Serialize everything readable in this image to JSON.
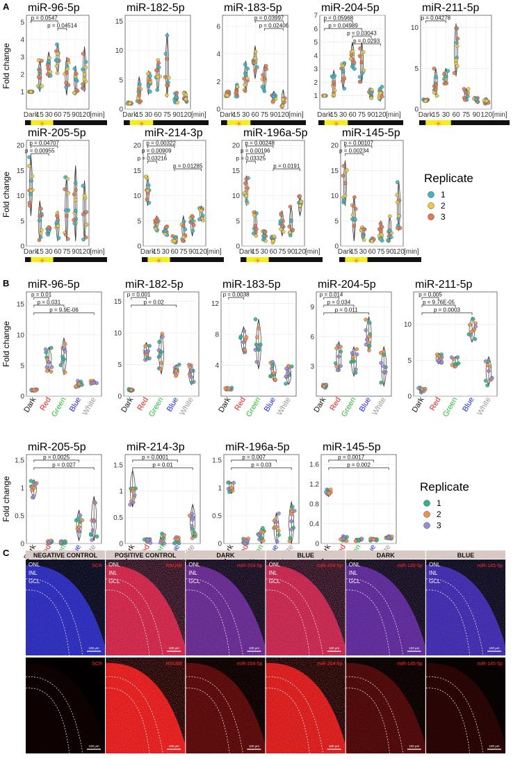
{
  "panels": {
    "A": "A",
    "B": "B",
    "C": "C"
  },
  "colors": {
    "rep1": "#3DB5C4",
    "rep2": "#E6C84A",
    "rep3": "#E07856",
    "b_rep1": "#2FB58C",
    "b_rep2": "#F0904A",
    "b_rep3": "#9A8AD6",
    "dark": "#111111",
    "light": "#F5EE1A",
    "red": "#E52420",
    "green": "#2BC03A",
    "blue": "#1E2BE0",
    "white": "#999999",
    "dapi": "#2233FF",
    "probe": "#FF1A1A"
  },
  "panel_a": {
    "ylabel": "Fold change",
    "xunit": "[min]",
    "categories": [
      "Dark",
      "15",
      "30",
      "60",
      "75",
      "90",
      "120"
    ],
    "legend": {
      "title": "Replicate",
      "labels": [
        "1",
        "2",
        "3"
      ]
    },
    "charts": [
      {
        "title": "miR-96-5p",
        "ylim": [
          0,
          5.4
        ],
        "yticks": [
          1,
          2,
          3,
          4,
          5
        ],
        "means": [
          1.0,
          2.2,
          2.75,
          3.2,
          2.1,
          1.7,
          2.0
        ],
        "range": [
          [
            1.0,
            1.0
          ],
          [
            1.0,
            2.9
          ],
          [
            1.8,
            3.3
          ],
          [
            2.0,
            3.8
          ],
          [
            0.8,
            3.0
          ],
          [
            0.9,
            2.5
          ],
          [
            1.0,
            3.6
          ]
        ],
        "pvals": [
          {
            "a": 0,
            "b": 3,
            "label": "p = 0.0547"
          },
          {
            "a": 3,
            "b": 4,
            "label": "p = 0.04514"
          }
        ]
      },
      {
        "title": "miR-182-5p",
        "ylim": [
          0,
          16
        ],
        "yticks": [
          0,
          5,
          10,
          15
        ],
        "means": [
          1.0,
          2.5,
          4.0,
          5.5,
          4.0,
          2.0,
          1.7
        ],
        "range": [
          [
            0.9,
            1.2
          ],
          [
            1.0,
            5.5
          ],
          [
            2.5,
            6.5
          ],
          [
            3.0,
            8.5
          ],
          [
            2.0,
            13.0
          ],
          [
            1.0,
            3.0
          ],
          [
            1.0,
            3.0
          ]
        ],
        "pvals": []
      },
      {
        "title": "miR-183-5p",
        "ylim": [
          0,
          6.8
        ],
        "yticks": [
          0,
          2,
          4,
          6
        ],
        "means": [
          1.0,
          1.2,
          2.5,
          3.7,
          2.2,
          0.9,
          0.7
        ],
        "range": [
          [
            0.9,
            1.3
          ],
          [
            0.8,
            1.8
          ],
          [
            1.2,
            3.5
          ],
          [
            2.2,
            4.6
          ],
          [
            1.3,
            3.2
          ],
          [
            0.5,
            1.3
          ],
          [
            0.1,
            1.4
          ]
        ],
        "pvals": [
          {
            "a": 3,
            "b": 6,
            "label": "p = 0.03997"
          },
          {
            "a": 4,
            "b": 6,
            "label": "p = 0.02406"
          }
        ]
      },
      {
        "title": "miR-204-5p",
        "ylim": [
          0,
          7
        ],
        "yticks": [
          1,
          2,
          3,
          4,
          5,
          6,
          7
        ],
        "means": [
          1.0,
          2.0,
          2.8,
          4.3,
          3.5,
          1.2,
          1.2
        ],
        "range": [
          [
            1.0,
            1.0
          ],
          [
            1.0,
            2.9
          ],
          [
            1.5,
            3.5
          ],
          [
            3.0,
            5.0
          ],
          [
            2.0,
            5.0
          ],
          [
            0.8,
            1.5
          ],
          [
            0.6,
            1.7
          ]
        ],
        "pvals": [
          {
            "a": 0,
            "b": 3,
            "label": "p = 0.05968"
          },
          {
            "a": 0,
            "b": 4,
            "label": "p = 0.04989"
          },
          {
            "a": 3,
            "b": 5,
            "label": "p = 0.03043"
          },
          {
            "a": 3,
            "b": 6,
            "label": "p = 0.0293"
          }
        ]
      },
      {
        "title": "miR-211-5p",
        "ylim": [
          0,
          11.5
        ],
        "yticks": [
          0,
          5,
          10
        ],
        "means": [
          1.0,
          3.0,
          4.0,
          6.0,
          2.0,
          1.2,
          1.0
        ],
        "range": [
          [
            0.9,
            1.2
          ],
          [
            1.5,
            5.0
          ],
          [
            3.0,
            5.0
          ],
          [
            4.0,
            10.5
          ],
          [
            1.0,
            2.5
          ],
          [
            0.8,
            1.5
          ],
          [
            0.6,
            1.4
          ]
        ],
        "pvals": [
          {
            "a": 0,
            "b": 2,
            "label": "p = 0.04278"
          }
        ]
      },
      {
        "title": "miR-205-5p",
        "ylim": [
          0,
          21
        ],
        "yticks": [
          0,
          5,
          10,
          15,
          20
        ],
        "means": [
          11,
          6,
          3,
          4,
          6,
          7,
          10
        ],
        "range": [
          [
            6,
            18
          ],
          [
            1,
            9
          ],
          [
            2,
            4
          ],
          [
            1,
            7
          ],
          [
            1,
            14
          ],
          [
            1,
            16
          ],
          [
            1,
            13
          ]
        ],
        "pvals": [
          {
            "a": 0,
            "b": 3,
            "label": "p = 0.04707"
          },
          {
            "a": 0,
            "b": 2,
            "label": "p = 0.00955"
          }
        ]
      },
      {
        "title": "miR-214-3p",
        "ylim": [
          0,
          21
        ],
        "yticks": [
          0,
          5,
          10,
          15,
          20
        ],
        "means": [
          11,
          5,
          3,
          1,
          4,
          5,
          7
        ],
        "range": [
          [
            8,
            14
          ],
          [
            3,
            6
          ],
          [
            2,
            4
          ],
          [
            0.5,
            2
          ],
          [
            1,
            6
          ],
          [
            2,
            6
          ],
          [
            5,
            8
          ]
        ],
        "pvals": [
          {
            "a": 0,
            "b": 3,
            "label": "p = 0.00322"
          },
          {
            "a": 0,
            "b": 2,
            "label": "p = 0.00909"
          },
          {
            "a": 0,
            "b": 1,
            "label": "p = 0.03216"
          },
          {
            "a": 3,
            "b": 6,
            "label": "p = 0.01285"
          }
        ]
      },
      {
        "title": "miR-196a-5p",
        "ylim": [
          0,
          21
        ],
        "yticks": [
          0,
          5,
          10,
          15,
          20
        ],
        "means": [
          10,
          4,
          2,
          1,
          4,
          5,
          8
        ],
        "range": [
          [
            8,
            14
          ],
          [
            2,
            7
          ],
          [
            1,
            3
          ],
          [
            0.5,
            2
          ],
          [
            2,
            7
          ],
          [
            2,
            8
          ],
          [
            6,
            10
          ]
        ],
        "pvals": [
          {
            "a": 0,
            "b": 3,
            "label": "p = 0.00248"
          },
          {
            "a": 0,
            "b": 2,
            "label": "p = 0.00196"
          },
          {
            "a": 0,
            "b": 1,
            "label": "p = 0.03325"
          },
          {
            "a": 3,
            "b": 6,
            "label": "p = 0.0191"
          }
        ]
      },
      {
        "title": "miR-145-5p",
        "ylim": [
          0,
          21
        ],
        "yticks": [
          0,
          5,
          10,
          15,
          20
        ],
        "means": [
          10,
          4,
          2,
          1,
          3,
          3,
          6
        ],
        "range": [
          [
            8,
            17
          ],
          [
            1,
            10
          ],
          [
            1,
            4
          ],
          [
            1,
            1.5
          ],
          [
            1,
            5
          ],
          [
            1,
            6
          ],
          [
            3,
            13
          ]
        ],
        "pvals": [
          {
            "a": 0,
            "b": 3,
            "label": "p = 0.00107"
          },
          {
            "a": 0,
            "b": 2,
            "label": "p = 0.00234"
          }
        ]
      }
    ]
  },
  "panel_b": {
    "ylabel": "Fold change",
    "categories": [
      "Dark",
      "Red",
      "Green",
      "Blue",
      "White"
    ],
    "legend": {
      "title": "Replicate",
      "labels": [
        "1",
        "2",
        "3"
      ]
    },
    "charts": [
      {
        "title": "miR-96-5p",
        "ylim": [
          0,
          17
        ],
        "yticks": [
          0,
          5,
          10,
          15
        ],
        "means": [
          1.0,
          5.5,
          6.0,
          2.0,
          2.2
        ],
        "range": [
          [
            0.9,
            1.1
          ],
          [
            4.0,
            8.0
          ],
          [
            3.5,
            9.5
          ],
          [
            1.5,
            2.5
          ],
          [
            2.0,
            2.5
          ]
        ],
        "pvals": [
          {
            "a": 0,
            "b": 1,
            "label": "p = 0.01"
          },
          {
            "a": 0,
            "b": 2,
            "label": "p = 0.031"
          },
          {
            "a": 0,
            "b": 4,
            "label": "p = 9.9E-06"
          }
        ]
      },
      {
        "title": "miR-182-5p",
        "ylim": [
          0,
          16.5
        ],
        "yticks": [
          0,
          5,
          10,
          15
        ],
        "means": [
          1.0,
          7.0,
          7.0,
          4.0,
          4.0
        ],
        "range": [
          [
            0.8,
            1.2
          ],
          [
            5.5,
            8.5
          ],
          [
            3.5,
            10.0
          ],
          [
            3.0,
            5.0
          ],
          [
            1.8,
            5.0
          ]
        ],
        "pvals": [
          {
            "a": 0,
            "b": 1,
            "label": "p = 0.001"
          },
          {
            "a": 0,
            "b": 3,
            "label": "p = 0.02"
          }
        ]
      },
      {
        "title": "miR-183-5p",
        "ylim": [
          0,
          13.5
        ],
        "yticks": [
          4,
          8,
          12
        ],
        "means": [
          1.0,
          7.0,
          6.0,
          3.0,
          3.0
        ],
        "range": [
          [
            0.8,
            1.2
          ],
          [
            5.5,
            9.0
          ],
          [
            3.5,
            10.0
          ],
          [
            2.0,
            4.5
          ],
          [
            1.5,
            4.0
          ]
        ],
        "pvals": [
          {
            "a": 0,
            "b": 1,
            "label": "p = 0.0038"
          }
        ]
      },
      {
        "title": "miR-204-5p",
        "ylim": [
          0,
          10.5
        ],
        "yticks": [
          3,
          6,
          9
        ],
        "means": [
          1.0,
          4.0,
          3.5,
          6.0,
          3.0
        ],
        "range": [
          [
            0.8,
            1.2
          ],
          [
            2.5,
            5.5
          ],
          [
            2.0,
            5.0
          ],
          [
            4.5,
            8.0
          ],
          [
            1.0,
            5.0
          ]
        ],
        "pvals": [
          {
            "a": 0,
            "b": 1,
            "label": "p = 0.014"
          },
          {
            "a": 0,
            "b": 2,
            "label": "p = 0.034"
          },
          {
            "a": 0,
            "b": 3,
            "label": "p = 0.011"
          }
        ]
      },
      {
        "title": "miR-211-5p",
        "ylim": [
          0,
          14.5
        ],
        "yticks": [
          0,
          5,
          10
        ],
        "means": [
          1.0,
          5.0,
          4.5,
          9.0,
          3.5
        ],
        "range": [
          [
            0.5,
            1.2
          ],
          [
            4.5,
            6.0
          ],
          [
            4.0,
            5.5
          ],
          [
            7.5,
            11.0
          ],
          [
            1.5,
            5.5
          ]
        ],
        "pvals": [
          {
            "a": 0,
            "b": 1,
            "label": "p = 0.005"
          },
          {
            "a": 0,
            "b": 2,
            "label": "p = 9.76E-05"
          },
          {
            "a": 0,
            "b": 3,
            "label": "p = 0.0003"
          }
        ]
      },
      {
        "title": "miR-205-5p",
        "ylim": [
          0,
          1.6
        ],
        "yticks": [
          0.0,
          0.5,
          1.0,
          1.5
        ],
        "means": [
          1.0,
          0.02,
          0.03,
          0.3,
          0.4
        ],
        "range": [
          [
            0.8,
            1.15
          ],
          [
            0.0,
            0.05
          ],
          [
            0.0,
            0.05
          ],
          [
            0.05,
            0.6
          ],
          [
            0.05,
            0.85
          ]
        ],
        "pvals": [
          {
            "a": 0,
            "b": 3,
            "label": "p = 0.0025"
          },
          {
            "a": 0,
            "b": 4,
            "label": "p = 0.027"
          }
        ]
      },
      {
        "title": "miR-214-3p",
        "ylim": [
          0,
          1.7
        ],
        "yticks": [
          0.0,
          0.5,
          1.0,
          1.5
        ],
        "means": [
          1.0,
          0.07,
          0.1,
          0.08,
          0.5
        ],
        "range": [
          [
            0.7,
            1.4
          ],
          [
            0.0,
            0.1
          ],
          [
            0.0,
            0.2
          ],
          [
            0.0,
            0.12
          ],
          [
            0.1,
            0.75
          ]
        ],
        "pvals": [
          {
            "a": 0,
            "b": 3,
            "label": "p = 0.0001"
          },
          {
            "a": 0,
            "b": 4,
            "label": "p = 0.01"
          }
        ]
      },
      {
        "title": "miR-196a-5p",
        "ylim": [
          0,
          1.6
        ],
        "yticks": [
          0.0,
          0.5,
          1.0,
          1.5
        ],
        "means": [
          1.0,
          0.05,
          0.1,
          0.3,
          0.4
        ],
        "range": [
          [
            0.9,
            1.1
          ],
          [
            0.0,
            0.1
          ],
          [
            0.0,
            0.28
          ],
          [
            0.0,
            0.55
          ],
          [
            0.0,
            0.75
          ]
        ],
        "pvals": [
          {
            "a": 0,
            "b": 3,
            "label": "p = 0.007"
          },
          {
            "a": 0,
            "b": 4,
            "label": "p = 0.03"
          }
        ]
      },
      {
        "title": "miR-145-5p",
        "ylim": [
          0,
          1.8
        ],
        "yticks": [
          0.0,
          0.4,
          0.8,
          1.2,
          1.6
        ],
        "means": [
          1.02,
          0.1,
          0.07,
          0.08,
          0.12
        ],
        "range": [
          [
            0.95,
            1.1
          ],
          [
            0.05,
            0.15
          ],
          [
            0.05,
            0.1
          ],
          [
            0.05,
            0.1
          ],
          [
            0.1,
            0.15
          ]
        ],
        "pvals": [
          {
            "a": 0,
            "b": 3,
            "label": "p = 0.0017"
          },
          {
            "a": 0,
            "b": 4,
            "label": "p = 0.002"
          }
        ]
      }
    ]
  },
  "panel_c": {
    "headers": [
      "NEGATIVE CONTROL",
      "POSITIVE CONTROL",
      "DARK",
      "BLUE",
      "DARK",
      "BLUE"
    ],
    "probes": [
      "SCR",
      "RNU6B",
      "miR-204-5p",
      "miR-204-5p",
      "miR-145-5p",
      "miR-145-5p"
    ],
    "layers": [
      "ONL",
      "INL",
      "GCL"
    ],
    "scale": "100 µm",
    "intensity": [
      0.05,
      0.95,
      0.35,
      0.9,
      0.3,
      0.15
    ]
  }
}
